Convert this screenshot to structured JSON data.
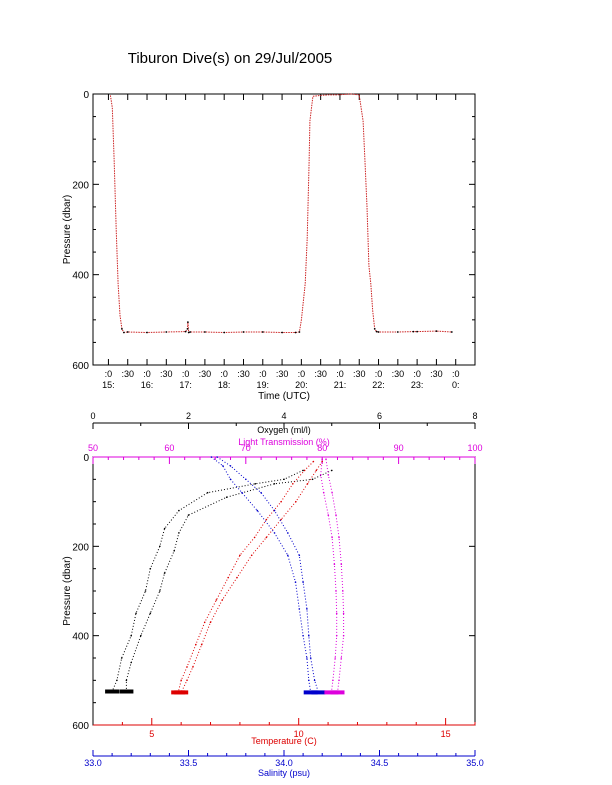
{
  "title": "Tiburon Dive(s) on 29/Jul/2005",
  "colors": {
    "axis": "#000000",
    "depth_trace": "#cc2222",
    "oxygen": "#000000",
    "temperature": "#dd0000",
    "salinity": "#0000cc",
    "light_transmission": "#dd00dd"
  },
  "chart_data": [
    {
      "type": "line",
      "name": "dive-profile",
      "xlabel": "Time (UTC)",
      "ylabel": "Pressure (dbar)",
      "xlim": [
        14.6,
        24.5
      ],
      "ylim": [
        600,
        0
      ],
      "y_ticks": [
        "0",
        "200",
        "400",
        "600"
      ],
      "x_ticks": [
        {
          "minute": ":0",
          "hour": "15:",
          "t": 15.0
        },
        {
          "minute": ":30",
          "hour": "",
          "t": 15.5
        },
        {
          "minute": ":0",
          "hour": "16:",
          "t": 16.0
        },
        {
          "minute": ":30",
          "hour": "",
          "t": 16.5
        },
        {
          "minute": ":0",
          "hour": "17:",
          "t": 17.0
        },
        {
          "minute": ":30",
          "hour": "",
          "t": 17.5
        },
        {
          "minute": ":0",
          "hour": "18:",
          "t": 18.0
        },
        {
          "minute": ":30",
          "hour": "",
          "t": 18.5
        },
        {
          "minute": ":0",
          "hour": "19:",
          "t": 19.0
        },
        {
          "minute": ":30",
          "hour": "",
          "t": 19.5
        },
        {
          "minute": ":0",
          "hour": "20:",
          "t": 20.0
        },
        {
          "minute": ":30",
          "hour": "",
          "t": 20.5
        },
        {
          "minute": ":0",
          "hour": "21:",
          "t": 21.0
        },
        {
          "minute": ":30",
          "hour": "",
          "t": 21.5
        },
        {
          "minute": ":0",
          "hour": "22:",
          "t": 22.0
        },
        {
          "minute": ":30",
          "hour": "",
          "t": 22.5
        },
        {
          "minute": ":0",
          "hour": "23:",
          "t": 23.0
        },
        {
          "minute": ":30",
          "hour": "",
          "t": 23.5
        },
        {
          "minute": ":0",
          "hour": "0:",
          "t": 24.0
        }
      ],
      "x": [
        15.05,
        15.1,
        15.15,
        15.2,
        15.25,
        15.3,
        15.35,
        15.4,
        15.5,
        16.0,
        16.5,
        17.0,
        17.05,
        17.06,
        17.08,
        17.12,
        17.5,
        18.0,
        18.5,
        19.0,
        19.5,
        19.85,
        19.95,
        20.0,
        20.1,
        20.15,
        20.2,
        20.22,
        20.3,
        20.5,
        20.7,
        20.9,
        21.1,
        21.3,
        21.5,
        21.6,
        21.65,
        21.7,
        21.75,
        21.8,
        21.85,
        21.9,
        21.95,
        22.0,
        22.5,
        22.9,
        23.0,
        23.5,
        23.9
      ],
      "y": [
        3,
        30,
        150,
        300,
        420,
        490,
        520,
        528,
        527,
        528,
        527,
        526,
        520,
        505,
        528,
        527,
        527,
        528,
        527,
        527,
        528,
        528,
        527,
        500,
        420,
        320,
        150,
        60,
        5,
        3,
        2,
        2,
        1,
        0,
        2,
        60,
        150,
        250,
        380,
        420,
        480,
        520,
        526,
        527,
        527,
        526,
        526,
        525,
        527
      ]
    },
    {
      "type": "scatter",
      "name": "property-profiles",
      "ylabel": "Pressure (dbar)",
      "ylim": [
        600,
        0
      ],
      "y_ticks": [
        "0",
        "200",
        "400",
        "600"
      ],
      "axes": {
        "oxygen": {
          "label": "Oxygen (ml/l)",
          "range": [
            0,
            8
          ],
          "ticks": [
            "0",
            "2",
            "4",
            "6",
            "8"
          ]
        },
        "light_transmission": {
          "label": "Light Transmission (%)",
          "range": [
            50,
            100
          ],
          "ticks": [
            "50",
            "60",
            "70",
            "80",
            "90",
            "100"
          ]
        },
        "temperature": {
          "label": "Temperature (C)",
          "range": [
            3,
            16
          ],
          "ticks": [
            "5",
            "10",
            "15"
          ]
        },
        "salinity": {
          "label": "Salinity (psu)",
          "range": [
            33.0,
            35.0
          ],
          "ticks": [
            "33.0",
            "33.5",
            "34.0",
            "34.5",
            "35.0"
          ]
        }
      },
      "series": [
        {
          "key": "oxygen",
          "values": [
            [
              4.4,
              30
            ],
            [
              4.0,
              50
            ],
            [
              3.4,
              60
            ],
            [
              2.4,
              80
            ],
            [
              1.8,
              120
            ],
            [
              1.5,
              160
            ],
            [
              1.4,
              200
            ],
            [
              1.2,
              250
            ],
            [
              1.1,
              300
            ],
            [
              0.9,
              350
            ],
            [
              0.8,
              400
            ],
            [
              0.6,
              450
            ],
            [
              0.5,
              500
            ],
            [
              0.4,
              525
            ]
          ]
        },
        {
          "key": "oxygen",
          "values": [
            [
              5.0,
              30
            ],
            [
              4.6,
              50
            ],
            [
              3.8,
              60
            ],
            [
              2.8,
              90
            ],
            [
              2.0,
              130
            ],
            [
              1.8,
              170
            ],
            [
              1.7,
              210
            ],
            [
              1.5,
              260
            ],
            [
              1.4,
              300
            ],
            [
              1.2,
              350
            ],
            [
              1.0,
              400
            ],
            [
              0.8,
              460
            ],
            [
              0.7,
              500
            ],
            [
              0.7,
              525
            ]
          ]
        },
        {
          "key": "temperature",
          "values": [
            [
              10.8,
              10
            ],
            [
              10.6,
              30
            ],
            [
              10.3,
              60
            ],
            [
              9.9,
              100
            ],
            [
              9.4,
              140
            ],
            [
              8.9,
              180
            ],
            [
              8.4,
              220
            ],
            [
              7.9,
              270
            ],
            [
              7.4,
              320
            ],
            [
              7.0,
              370
            ],
            [
              6.7,
              420
            ],
            [
              6.4,
              470
            ],
            [
              6.2,
              500
            ],
            [
              6.0,
              527
            ]
          ]
        },
        {
          "key": "temperature",
          "values": [
            [
              10.5,
              10
            ],
            [
              10.2,
              30
            ],
            [
              9.8,
              60
            ],
            [
              9.4,
              100
            ],
            [
              8.9,
              140
            ],
            [
              8.5,
              180
            ],
            [
              8.0,
              220
            ],
            [
              7.6,
              270
            ],
            [
              7.2,
              320
            ],
            [
              6.8,
              370
            ],
            [
              6.5,
              420
            ],
            [
              6.2,
              470
            ],
            [
              6.0,
              500
            ],
            [
              5.9,
              527
            ]
          ]
        },
        {
          "key": "salinity",
          "values": [
            [
              33.62,
              0
            ],
            [
              33.68,
              20
            ],
            [
              33.72,
              50
            ],
            [
              33.78,
              80
            ],
            [
              33.86,
              120
            ],
            [
              33.95,
              170
            ],
            [
              34.02,
              220
            ],
            [
              34.06,
              280
            ],
            [
              34.08,
              340
            ],
            [
              34.1,
              400
            ],
            [
              34.12,
              450
            ],
            [
              34.13,
              500
            ],
            [
              34.14,
              527
            ]
          ]
        },
        {
          "key": "salinity",
          "values": [
            [
              33.65,
              0
            ],
            [
              33.72,
              20
            ],
            [
              33.8,
              50
            ],
            [
              33.88,
              80
            ],
            [
              33.95,
              120
            ],
            [
              34.02,
              170
            ],
            [
              34.08,
              220
            ],
            [
              34.1,
              280
            ],
            [
              34.12,
              340
            ],
            [
              34.13,
              400
            ],
            [
              34.14,
              450
            ],
            [
              34.16,
              500
            ],
            [
              34.18,
              527
            ]
          ]
        },
        {
          "key": "light_transmission",
          "values": [
            [
              80.5,
              5
            ],
            [
              80.8,
              40
            ],
            [
              81.3,
              80
            ],
            [
              81.8,
              130
            ],
            [
              82.2,
              180
            ],
            [
              82.5,
              240
            ],
            [
              82.7,
              300
            ],
            [
              82.8,
              350
            ],
            [
              82.8,
              400
            ],
            [
              82.5,
              450
            ],
            [
              82.2,
              500
            ],
            [
              82.0,
              527
            ]
          ]
        },
        {
          "key": "light_transmission",
          "values": [
            [
              80.0,
              5
            ],
            [
              79.8,
              40
            ],
            [
              80.2,
              80
            ],
            [
              80.8,
              130
            ],
            [
              81.3,
              180
            ],
            [
              81.6,
              240
            ],
            [
              81.8,
              300
            ],
            [
              81.9,
              350
            ],
            [
              81.9,
              400
            ],
            [
              81.7,
              450
            ],
            [
              81.4,
              500
            ],
            [
              81.2,
              527
            ]
          ]
        }
      ]
    }
  ]
}
